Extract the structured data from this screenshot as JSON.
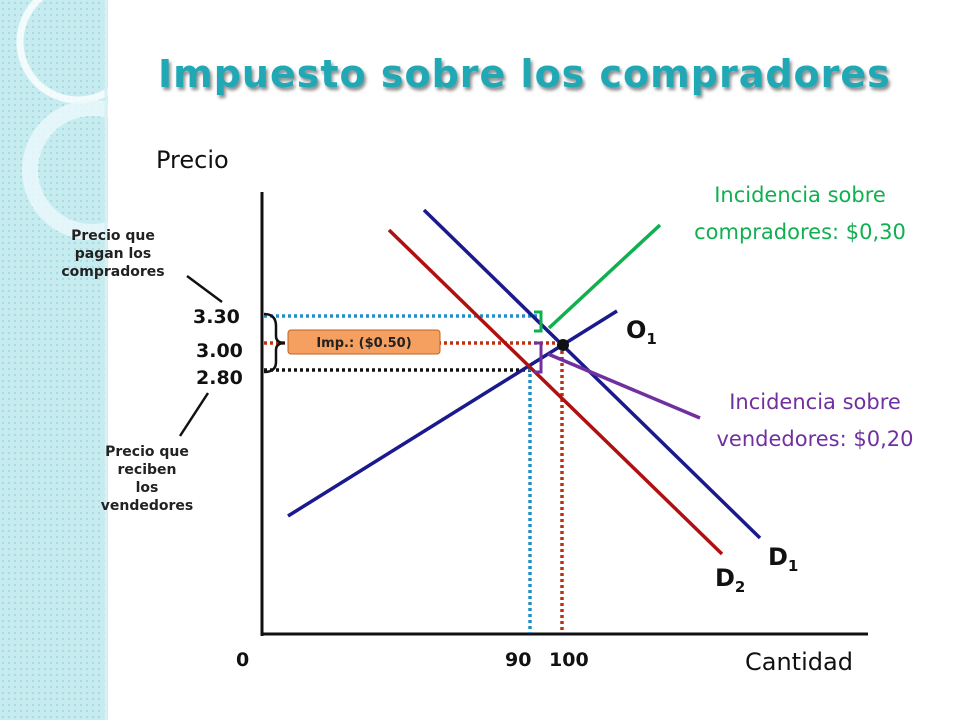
{
  "slide": {
    "title": "Impuesto sobre los compradores"
  },
  "colors": {
    "title": "#20a9b5",
    "side_panel": "#c7ecf0",
    "supply": "#1a1a8c",
    "demand_original": "#1a1a8c",
    "demand_taxed": "#b01010",
    "buyers_incidence": "#10b050",
    "sellers_incidence": "#7030a0",
    "tax_box": "#f5a060",
    "guide_blue": "#2090c8",
    "guide_red": "#c03010",
    "guide_black": "#111111"
  },
  "axes": {
    "y_label": "Precio",
    "x_label": "Cantidad",
    "origin_label": "0"
  },
  "ticks": {
    "price_330": "3.30",
    "price_300": "3.00",
    "price_280": "2.80",
    "qty_90": "90",
    "qty_100": "100"
  },
  "curves": {
    "supply": {
      "letter": "O",
      "sub": "1"
    },
    "demand_1": {
      "letter": "D",
      "sub": "1"
    },
    "demand_2": {
      "letter": "D",
      "sub": "2"
    }
  },
  "tax_label": "Imp.: ($0.50)",
  "notes": {
    "buyers_price": [
      "Precio que",
      "pagan los",
      "compradores"
    ],
    "sellers_price": [
      "Precio que",
      "reciben",
      "los",
      "vendedores"
    ]
  },
  "incidence": {
    "buyers": [
      "Incidencia sobre",
      "compradores: $0,30"
    ],
    "sellers": [
      "Incidencia sobre",
      "vendedores: $0,20"
    ]
  }
}
